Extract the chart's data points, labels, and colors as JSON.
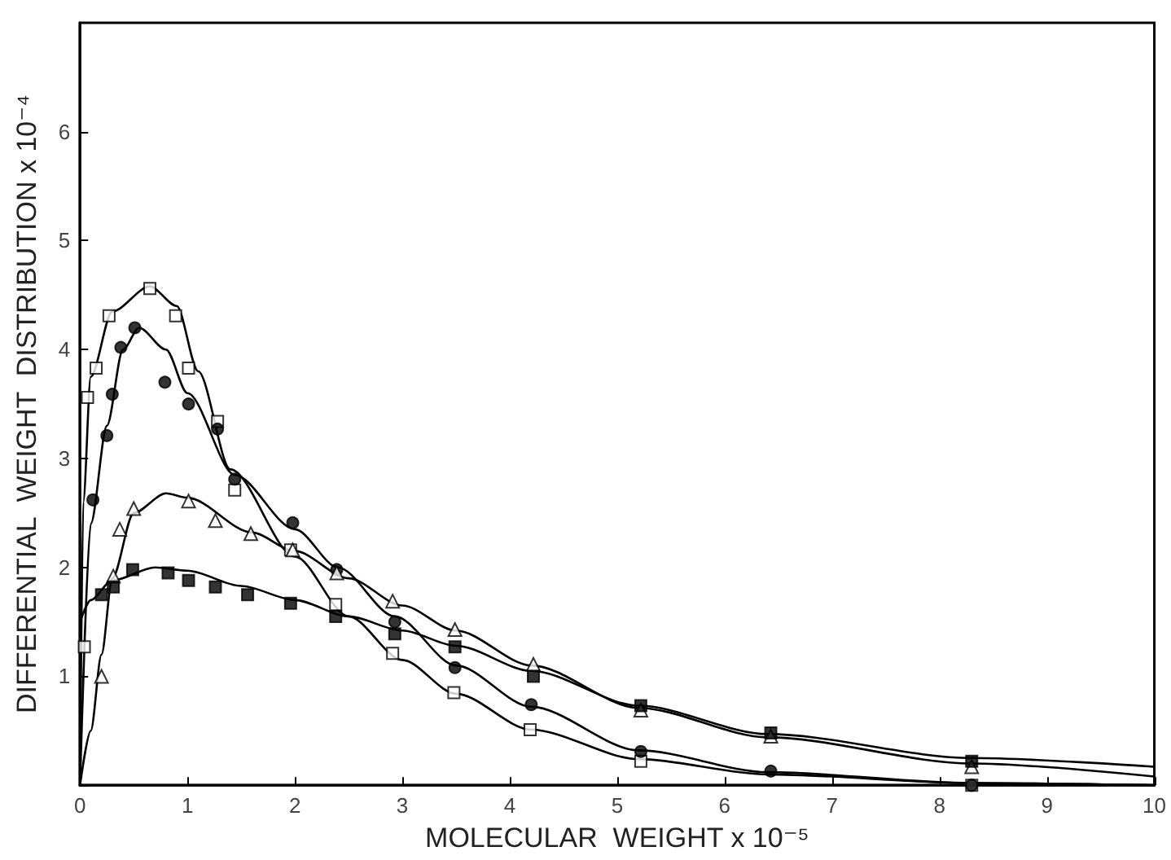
{
  "chart_data": {
    "type": "scatter",
    "xlabel": "MOLECULAR  WEIGHT x 10⁻⁵",
    "ylabel": "DIFFERENTIAL  WEIGHT  DISTRIBUTION x 10⁻⁴",
    "xlim": [
      0,
      10
    ],
    "xticks": [
      0,
      1,
      2,
      3,
      4,
      5,
      6,
      7,
      8,
      9,
      10
    ],
    "ylim": [
      0,
      7
    ],
    "yticks": [
      {
        "value": 0,
        "label": null
      },
      1,
      2,
      3,
      4,
      5,
      6
    ],
    "grid": false,
    "series": [
      {
        "marker": "square",
        "color": "#ffffff",
        "x": [
          0.04,
          0.07,
          0.15,
          0.27,
          0.65,
          0.89,
          1.01,
          1.28,
          1.44,
          1.96,
          2.38,
          2.91,
          3.48,
          4.19,
          5.22,
          8.3
        ],
        "values": [
          1.27,
          3.56,
          3.83,
          4.31,
          4.56,
          4.31,
          3.83,
          3.34,
          2.71,
          2.16,
          1.66,
          1.21,
          0.85,
          0.51,
          0.22,
          0.0
        ]
      },
      {
        "marker": "circle",
        "color": "#000000",
        "x": [
          0.12,
          0.25,
          0.3,
          0.38,
          0.51,
          0.79,
          1.01,
          1.28,
          1.44,
          1.98,
          2.39,
          2.93,
          3.49,
          4.2,
          5.22,
          6.43,
          8.3
        ],
        "values": [
          2.62,
          3.21,
          3.59,
          4.02,
          4.2,
          3.7,
          3.5,
          3.27,
          2.81,
          2.41,
          1.98,
          1.5,
          1.08,
          0.74,
          0.31,
          0.13,
          0.0
        ]
      },
      {
        "marker": "triangle",
        "color": "#ffffff",
        "x": [
          0.2,
          0.31,
          0.37,
          0.5,
          1.01,
          1.26,
          1.59,
          1.98,
          2.39,
          2.91,
          3.49,
          4.22,
          5.22,
          6.43,
          8.3
        ],
        "values": [
          1.0,
          1.92,
          2.35,
          2.54,
          2.61,
          2.43,
          2.31,
          2.16,
          1.95,
          1.69,
          1.43,
          1.11,
          0.69,
          0.45,
          0.17
        ]
      },
      {
        "marker": "square",
        "color": "#000000",
        "x": [
          0.2,
          0.31,
          0.49,
          0.82,
          1.01,
          1.26,
          1.56,
          1.96,
          2.38,
          2.93,
          3.49,
          4.22,
          5.22,
          6.43,
          8.3
        ],
        "values": [
          1.75,
          1.82,
          1.98,
          1.95,
          1.88,
          1.82,
          1.75,
          1.67,
          1.55,
          1.39,
          1.27,
          1.0,
          0.73,
          0.48,
          0.22
        ]
      },
      {
        "type": "line",
        "marker": "none",
        "color": "#000000",
        "x": [
          0,
          0.03,
          0.1,
          0.3,
          0.65,
          0.9,
          1.1,
          1.4,
          2,
          2.5,
          3,
          3.5,
          4.2,
          5.2,
          6.4,
          8.3,
          10
        ],
        "values": [
          0,
          2.6,
          3.75,
          4.35,
          4.58,
          4.4,
          3.8,
          2.9,
          2.1,
          1.55,
          1.15,
          0.84,
          0.51,
          0.24,
          0.1,
          0.02,
          0
        ]
      },
      {
        "type": "line",
        "marker": "none",
        "color": "#000000",
        "x": [
          0,
          0.1,
          0.25,
          0.4,
          0.55,
          0.8,
          1.0,
          1.44,
          2,
          2.4,
          2.93,
          3.5,
          4.2,
          5.2,
          6.4,
          8.3,
          10
        ],
        "values": [
          0,
          2.4,
          3.3,
          4.0,
          4.2,
          4.0,
          3.6,
          2.85,
          2.35,
          2.0,
          1.55,
          1.1,
          0.72,
          0.32,
          0.12,
          0.02,
          0
        ]
      },
      {
        "type": "line",
        "marker": "none",
        "color": "#000000",
        "x": [
          0,
          0.1,
          0.2,
          0.3,
          0.5,
          0.8,
          1.0,
          1.6,
          2,
          2.5,
          3,
          3.5,
          4.2,
          5.2,
          6.4,
          8.3,
          10
        ],
        "values": [
          0,
          0.5,
          1.2,
          1.9,
          2.5,
          2.68,
          2.64,
          2.32,
          2.15,
          1.9,
          1.65,
          1.42,
          1.1,
          0.71,
          0.44,
          0.2,
          0.08
        ]
      },
      {
        "type": "line",
        "marker": "none",
        "color": "#000000",
        "x": [
          0,
          0.1,
          0.3,
          0.7,
          1.0,
          1.5,
          2,
          2.5,
          3,
          3.5,
          4.2,
          5.2,
          6.4,
          8.3,
          10
        ],
        "values": [
          1.5,
          1.7,
          1.88,
          2.0,
          1.97,
          1.83,
          1.7,
          1.55,
          1.42,
          1.28,
          1.05,
          0.73,
          0.47,
          0.25,
          0.17
        ]
      }
    ]
  }
}
